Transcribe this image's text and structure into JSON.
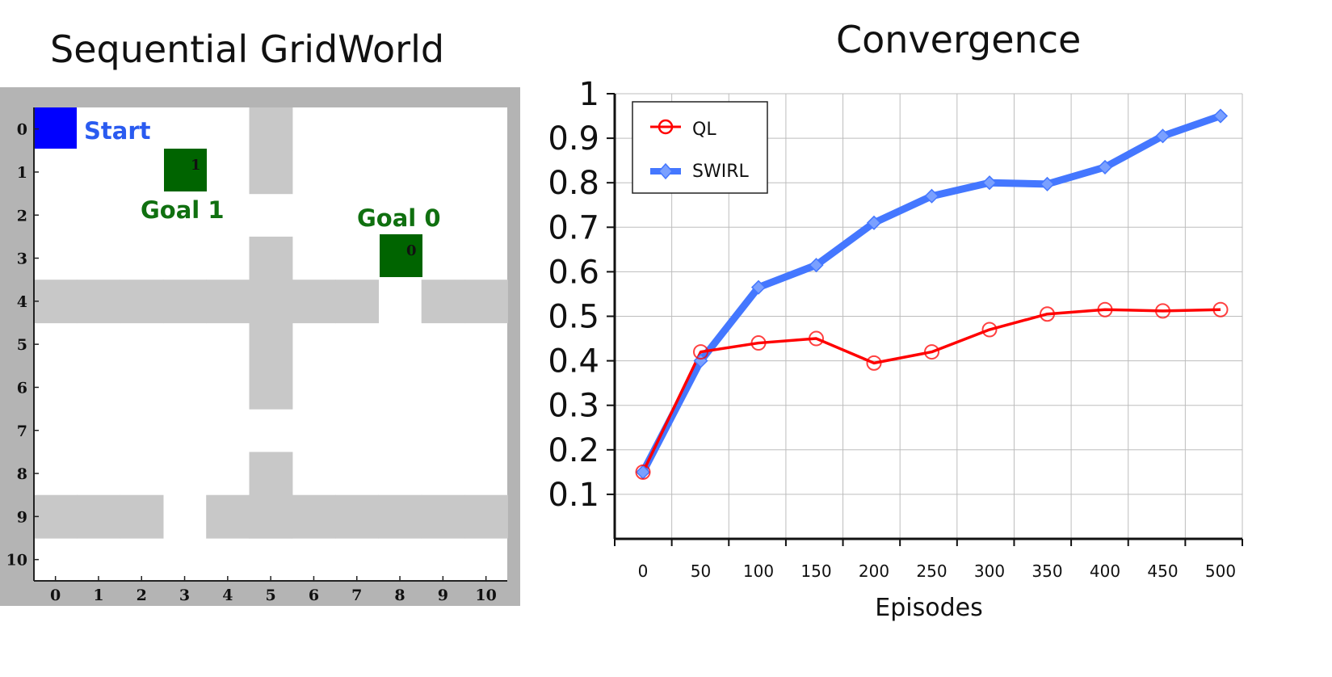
{
  "gridworld": {
    "title": "Sequential GridWorld",
    "x_ticks": [
      "0",
      "1",
      "2",
      "3",
      "4",
      "5",
      "6",
      "7",
      "8",
      "9",
      "10"
    ],
    "y_ticks": [
      "0",
      "1",
      "2",
      "3",
      "4",
      "5",
      "6",
      "7",
      "8",
      "9",
      "10"
    ],
    "start_label": "Start",
    "goal1_label": "Goal 1",
    "goal0_label": "Goal 0",
    "goal1_cell_text": "1",
    "goal0_cell_text": "0",
    "colors": {
      "start": "#0000ff",
      "goal": "#006400",
      "goal_text": "#107010",
      "start_text": "#2a5bf0",
      "wall": "#c8c8c8",
      "frame": "#b4b4b4"
    }
  },
  "chart_data": {
    "type": "line",
    "title": "Convergence",
    "xlabel": "Episodes",
    "ylabel": "",
    "categories": [
      "0",
      "50",
      "100",
      "150",
      "200",
      "250",
      "300",
      "350",
      "400",
      "450",
      "500"
    ],
    "y_ticks": [
      "0.1",
      "0.2",
      "0.3",
      "0.4",
      "0.5",
      "0.6",
      "0.7",
      "0.8",
      "0.9",
      "1"
    ],
    "ylim": [
      0,
      1
    ],
    "grid": true,
    "legend_position": "top-left",
    "series": [
      {
        "name": "QL",
        "color": "#ff0000",
        "values": [
          0.15,
          0.42,
          0.44,
          0.45,
          0.395,
          0.42,
          0.47,
          0.505,
          0.515,
          0.512,
          0.515
        ]
      },
      {
        "name": "SWIRL",
        "color": "#4477ff",
        "values": [
          0.15,
          0.4,
          0.565,
          0.615,
          0.71,
          0.77,
          0.8,
          0.797,
          0.835,
          0.905,
          0.95
        ]
      }
    ]
  }
}
